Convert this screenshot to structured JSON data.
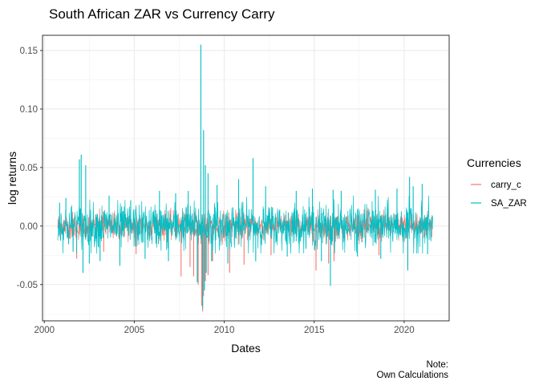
{
  "chart_data": {
    "type": "line",
    "title": "South African ZAR vs Currency Carry",
    "xlabel": "Dates",
    "ylabel": "log returns",
    "x_range": [
      "2000-10-01",
      "2021-08-01"
    ],
    "xlim": [
      1999.9,
      2022.5
    ],
    "ylim": [
      -0.081,
      0.163
    ],
    "x_ticks": [
      {
        "value": 2000,
        "label": "2000"
      },
      {
        "value": 2005,
        "label": "2005"
      },
      {
        "value": 2010,
        "label": "2010"
      },
      {
        "value": 2015,
        "label": "2015"
      },
      {
        "value": 2020,
        "label": "2020"
      }
    ],
    "y_ticks": [
      {
        "value": -0.05,
        "label": "-0.05"
      },
      {
        "value": 0.0,
        "label": "0.00"
      },
      {
        "value": 0.05,
        "label": "0.05"
      },
      {
        "value": 0.1,
        "label": "0.10"
      },
      {
        "value": 0.15,
        "label": "0.15"
      }
    ],
    "grid": true,
    "legend": {
      "title": "Currencies",
      "position": "right"
    },
    "series": [
      {
        "name": "carry_c",
        "color": "#F8766D",
        "typical_band": [
          -0.012,
          0.012
        ],
        "x": [
          2001.8,
          2003.3,
          2005.1,
          2007.6,
          2008.1,
          2008.3,
          2008.55,
          2008.75,
          2008.8,
          2008.85,
          2008.95,
          2009.1,
          2009.35,
          2010.3,
          2011.1,
          2012.6,
          2015.1,
          2015.8,
          2016.1,
          2018.6,
          2020.2
        ],
        "y": [
          -0.028,
          -0.022,
          -0.024,
          -0.043,
          -0.035,
          -0.043,
          -0.05,
          -0.068,
          -0.073,
          -0.06,
          -0.047,
          -0.042,
          -0.03,
          -0.04,
          -0.033,
          -0.025,
          -0.038,
          -0.032,
          -0.03,
          -0.025,
          -0.036
        ]
      },
      {
        "name": "SA_ZAR",
        "color": "#00BFC4",
        "typical_band": [
          -0.018,
          0.02
        ],
        "x": [
          2000.85,
          2001.2,
          2001.6,
          2001.95,
          2002.05,
          2002.15,
          2002.3,
          2002.5,
          2003.1,
          2003.6,
          2004.2,
          2004.8,
          2005.6,
          2006.4,
          2006.9,
          2007.3,
          2008.0,
          2008.5,
          2008.7,
          2008.8,
          2008.85,
          2008.9,
          2008.95,
          2009.0,
          2009.1,
          2009.3,
          2009.6,
          2010.2,
          2010.8,
          2011.6,
          2011.75,
          2012.3,
          2013.5,
          2014.0,
          2014.9,
          2015.4,
          2015.9,
          2016.05,
          2016.5,
          2017.4,
          2018.4,
          2018.7,
          2019.6,
          2020.2,
          2020.3,
          2020.5,
          2021.0,
          2021.3
        ],
        "y": [
          0.02,
          0.024,
          -0.022,
          0.057,
          0.061,
          -0.04,
          0.052,
          -0.032,
          -0.03,
          0.026,
          -0.034,
          0.022,
          -0.028,
          0.03,
          -0.03,
          0.028,
          0.03,
          -0.048,
          0.155,
          -0.07,
          0.082,
          -0.055,
          0.052,
          -0.04,
          0.045,
          -0.03,
          0.035,
          -0.032,
          0.04,
          0.058,
          -0.03,
          0.034,
          -0.026,
          0.03,
          0.032,
          -0.03,
          -0.051,
          0.031,
          0.03,
          -0.026,
          0.031,
          -0.028,
          0.032,
          -0.038,
          0.042,
          0.034,
          0.036,
          -0.024
        ]
      }
    ],
    "caption_lines": [
      "Note:",
      "Own Calculations"
    ]
  }
}
